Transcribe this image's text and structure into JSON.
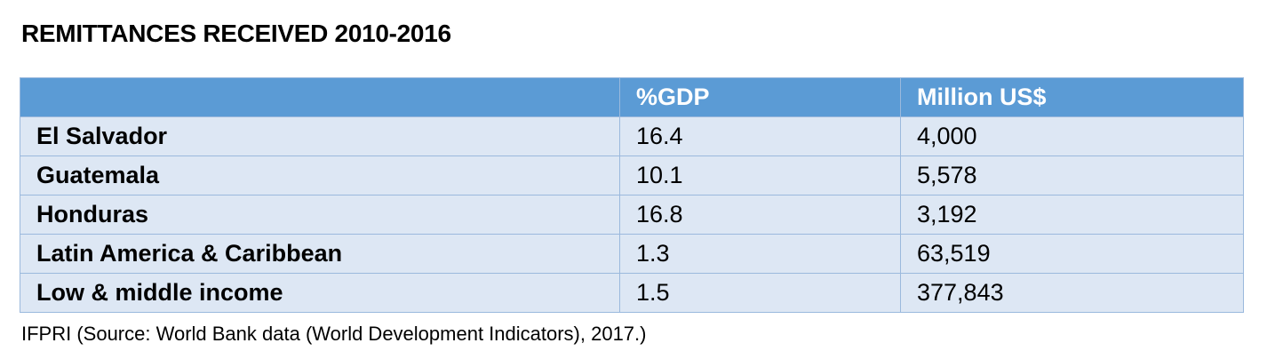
{
  "title": "REMITTANCES RECEIVED 2010-2016",
  "table": {
    "headers": [
      "",
      "%GDP",
      "Million US$"
    ],
    "rows": [
      {
        "country": "El Salvador",
        "gdp_pct": "16.4",
        "million_usd": "4,000"
      },
      {
        "country": "Guatemala",
        "gdp_pct": "10.1",
        "million_usd": "5,578"
      },
      {
        "country": "Honduras",
        "gdp_pct": "16.8",
        "million_usd": "3,192"
      },
      {
        "country": "Latin America & Caribbean",
        "gdp_pct": "1.3",
        "million_usd": "63,519"
      },
      {
        "country": "Low & middle income",
        "gdp_pct": "1.5",
        "million_usd": "377,843"
      }
    ]
  },
  "footnote": "IFPRI (Source: World Bank data (World Development Indicators), 2017.)",
  "colors": {
    "header_bg": "#5b9bd5",
    "row_bg": "#dde7f4",
    "border": "#9bb9dd"
  }
}
